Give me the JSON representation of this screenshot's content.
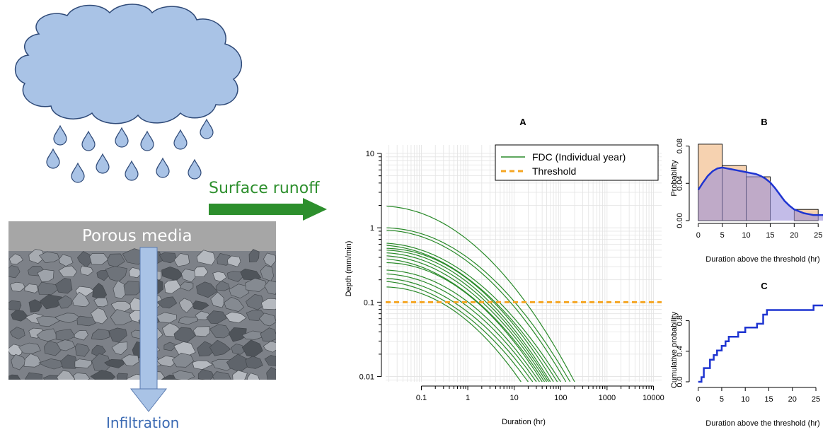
{
  "illustration": {
    "surface_runoff_label": "Surface runoff",
    "porous_media_label": "Porous media",
    "infiltration_label": "Infiltration",
    "colors": {
      "cloud": "#a9c3e6",
      "cloud_stroke": "#2f4a78",
      "arrow_green": "#2d8f2d",
      "arrow_blue": "#a9c3e6",
      "media_bar": "#a6a6a6",
      "gravel": "#8f9399"
    }
  },
  "chart_data": [
    {
      "id": "A",
      "type": "line",
      "title": "A",
      "xlabel": "Duration (hr)",
      "ylabel": "Depth (mm/min)",
      "xscale": "log",
      "yscale": "log",
      "xlim": [
        0.017,
        15000
      ],
      "ylim": [
        0.0085,
        13
      ],
      "xticks": [
        0.1,
        1,
        10,
        100,
        1000,
        10000
      ],
      "xtick_labels": [
        "0.1",
        "1",
        "10",
        "100",
        "1000",
        "10000"
      ],
      "yticks": [
        0.01,
        0.1,
        1,
        10
      ],
      "ytick_labels": [
        "0.01",
        "0.1",
        "1",
        "10"
      ],
      "grid": true,
      "legend": {
        "position": "top-right",
        "entries": [
          "FDC (Individual year)",
          "Threshold"
        ]
      },
      "threshold": 0.1,
      "line_color": "#2a8a2a",
      "threshold_color": "#f5a623",
      "series_peaks": [
        1.95,
        1.0,
        0.93,
        0.62,
        0.58,
        0.53,
        0.5,
        0.46,
        0.42,
        0.38,
        0.34,
        0.27,
        0.24,
        0.21,
        0.19,
        0.16
      ],
      "series_end_durations": [
        200,
        160,
        130,
        100,
        85,
        70,
        60,
        55,
        50,
        45,
        40,
        35,
        30,
        25,
        20,
        14
      ]
    },
    {
      "id": "B",
      "type": "bar",
      "title": "B",
      "xlabel": "Duration above the threshold (hr)",
      "ylabel": "Probability",
      "bin_edges": [
        0,
        5,
        10,
        15,
        20,
        25
      ],
      "values": [
        0.082,
        0.059,
        0.047,
        0.0,
        0.012
      ],
      "density_x": [
        0,
        1,
        2,
        3,
        4,
        5,
        6,
        7,
        8,
        9,
        10,
        11,
        12,
        13,
        14,
        15,
        16,
        17,
        18,
        19,
        20,
        21,
        22,
        23,
        24,
        25,
        26
      ],
      "density_y": [
        0.033,
        0.041,
        0.048,
        0.053,
        0.056,
        0.057,
        0.056,
        0.055,
        0.054,
        0.053,
        0.052,
        0.051,
        0.05,
        0.048,
        0.045,
        0.041,
        0.035,
        0.028,
        0.021,
        0.016,
        0.012,
        0.01,
        0.008,
        0.007,
        0.006,
        0.006,
        0.006
      ],
      "xlim": [
        -1,
        26
      ],
      "ylim": [
        0,
        0.088
      ],
      "xticks": [
        0,
        5,
        10,
        15,
        20,
        25
      ],
      "xtick_labels": [
        "0",
        "5",
        "10",
        "15",
        "20",
        "25"
      ],
      "yticks": [
        0,
        0.04,
        0.08
      ],
      "ytick_labels": [
        "0.00",
        "0.04",
        "0.08"
      ],
      "bar_fill": "#f6d2b0",
      "density_fill": "#9b8fd8",
      "density_line": "#1f35d1"
    },
    {
      "id": "C",
      "type": "line",
      "title": "C",
      "xlabel": "Duration above the threshold (hr)",
      "ylabel": "Cumulative probability",
      "steps_x": [
        0,
        0.7,
        1.2,
        2.5,
        3.3,
        4.0,
        5.0,
        5.8,
        6.5,
        8.5,
        10.0,
        12.5,
        13.8,
        14.6,
        15.0,
        24.5,
        26.5
      ],
      "steps_y": [
        0.0,
        0.06,
        0.18,
        0.29,
        0.35,
        0.41,
        0.47,
        0.53,
        0.59,
        0.65,
        0.71,
        0.76,
        0.88,
        0.94,
        0.94,
        1.0,
        1.0
      ],
      "xlim": [
        -1,
        26.5
      ],
      "ylim": [
        0,
        1.0
      ],
      "xticks": [
        0,
        5,
        10,
        15,
        20,
        25
      ],
      "xtick_labels": [
        "0",
        "5",
        "10",
        "15",
        "20",
        "25"
      ],
      "yticks": [
        0.0,
        0.4,
        0.8
      ],
      "ytick_labels": [
        "0.0",
        "0.4",
        "0.8"
      ],
      "line_color": "#1f35d1"
    }
  ]
}
